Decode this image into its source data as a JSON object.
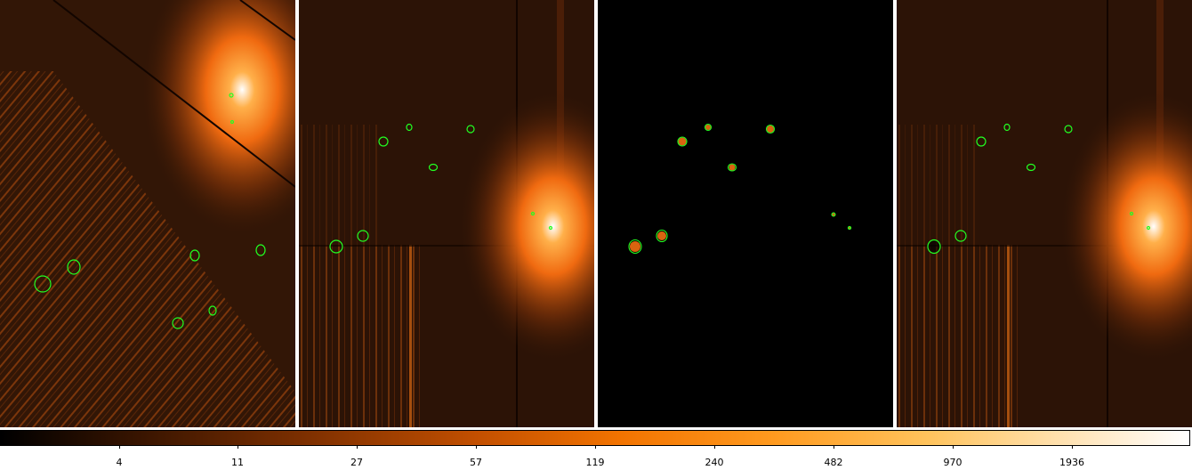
{
  "colorbar": {
    "ticks": [
      "4",
      "11",
      "27",
      "57",
      "119",
      "240",
      "482",
      "970",
      "1936"
    ],
    "colormap_stops": [
      "#000000",
      "#3a1500",
      "#7a2e00",
      "#c24f00",
      "#f27300",
      "#ff9a1f",
      "#ffc35c",
      "#ffe3b5",
      "#ffffff"
    ]
  },
  "colors": {
    "contour": "#22ff22",
    "background_panel": "#2a1206",
    "masked_panel": "#000000"
  }
}
